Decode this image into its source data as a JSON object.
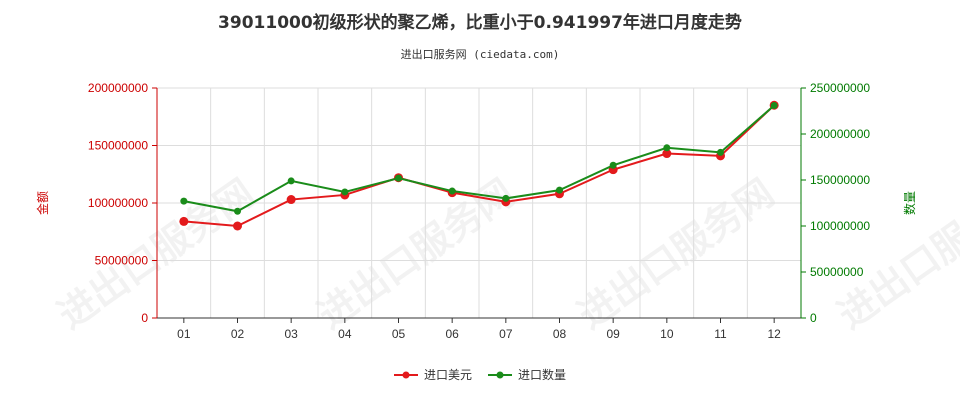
{
  "chart_data": {
    "type": "line",
    "title": "39011000初级形状的聚乙烯，比重小于0.941997年进口月度走势",
    "subtitle": "进出口服务网 (ciedata.com)",
    "watermark": "进出口服务网",
    "categories": [
      "01",
      "02",
      "03",
      "04",
      "05",
      "06",
      "07",
      "08",
      "09",
      "10",
      "11",
      "12"
    ],
    "y_left": {
      "label": "金额",
      "ylim": [
        0,
        200000000
      ],
      "ticks": [
        "0",
        "50000000",
        "100000000",
        "150000000",
        "200000000"
      ],
      "color": "#cc0000"
    },
    "y_right": {
      "label": "数量",
      "ylim": [
        0,
        250000000
      ],
      "ticks": [
        "0",
        "50000000",
        "100000000",
        "150000000",
        "200000000",
        "250000000"
      ],
      "color": "#007a00"
    },
    "series": [
      {
        "name": "进口美元",
        "axis": "left",
        "color": "#e31a1c",
        "values": [
          84000000,
          80000000,
          103000000,
          107000000,
          122000000,
          109000000,
          101000000,
          108000000,
          129000000,
          143000000,
          141000000,
          185000000
        ]
      },
      {
        "name": "进口数量",
        "axis": "right",
        "color": "#1a8c1a",
        "values": [
          127000000,
          116000000,
          149000000,
          137000000,
          152000000,
          138000000,
          130000000,
          139000000,
          166000000,
          185000000,
          180000000,
          231000000
        ]
      }
    ],
    "grid": true,
    "legend_position": "bottom-center"
  }
}
